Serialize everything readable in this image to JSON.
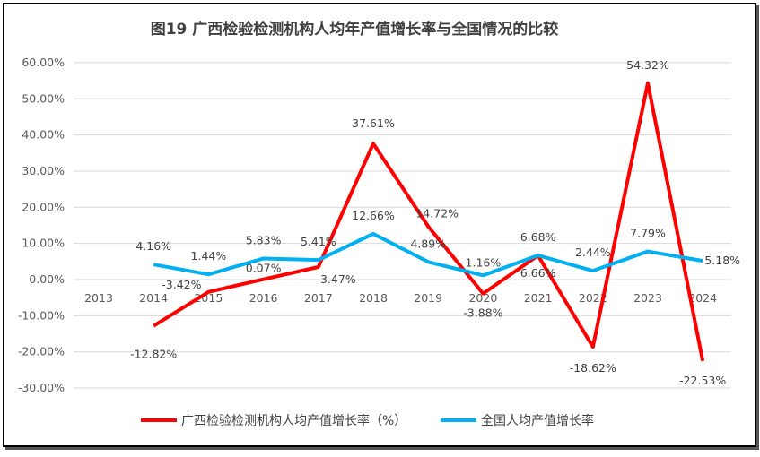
{
  "chart_data": {
    "type": "line",
    "title": "图19 广西检验检测机构人均年产值增长率与全国情况的比较",
    "categories": [
      "2013",
      "2014",
      "2015",
      "2016",
      "2017",
      "2018",
      "2019",
      "2020",
      "2021",
      "2022",
      "2023",
      "2024"
    ],
    "ylim": [
      -30,
      60
    ],
    "yticks": [
      "60.00%",
      "50.00%",
      "40.00%",
      "30.00%",
      "20.00%",
      "10.00%",
      "0.00%",
      "-10.00%",
      "-20.00%",
      "-30.00%"
    ],
    "grid": true,
    "legend_position": "bottom",
    "series": [
      {
        "name": "广西检验检测机构人均产值增长率（%）",
        "color": "#FF0000",
        "values": [
          null,
          -12.82,
          -3.42,
          0.07,
          3.47,
          37.61,
          14.72,
          -3.88,
          6.66,
          -18.62,
          54.32,
          -22.53
        ],
        "labels": [
          "",
          "-12.82%",
          "-3.42%",
          "0.07%",
          "3.47%",
          "37.61%",
          "14.72%",
          "-3.88%",
          "6.66%",
          "-18.62%",
          "54.32%",
          "-22.53%"
        ]
      },
      {
        "name": "全国人均产值增长率",
        "color": "#00B0F0",
        "values": [
          null,
          4.16,
          1.44,
          5.83,
          5.41,
          12.66,
          4.89,
          1.16,
          6.68,
          2.44,
          7.79,
          5.18
        ],
        "labels": [
          "",
          "4.16%",
          "1.44%",
          "5.83%",
          "5.41%",
          "12.66%",
          "4.89%",
          "1.16%",
          "6.68%",
          "2.44%",
          "7.79%",
          "5.18%"
        ]
      }
    ]
  }
}
